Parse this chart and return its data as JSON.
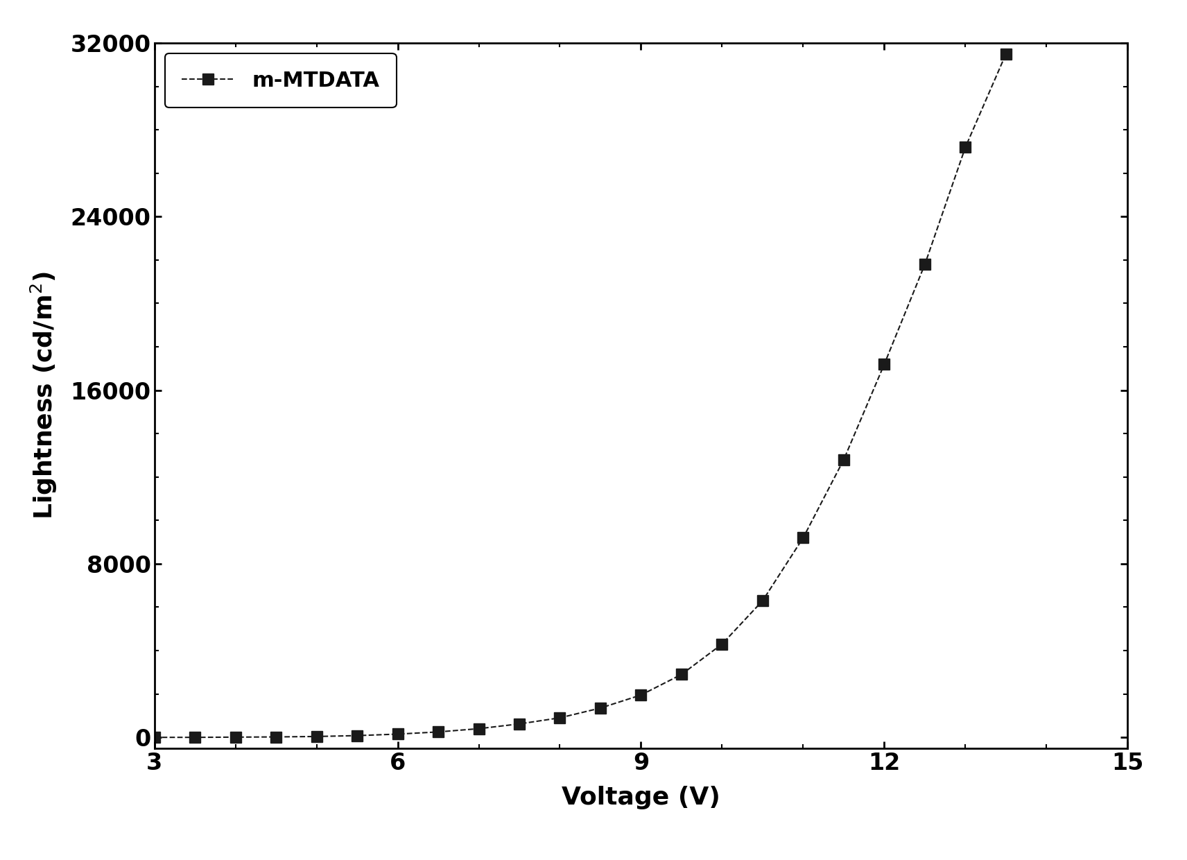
{
  "x": [
    3.0,
    3.5,
    4.0,
    4.5,
    5.0,
    5.5,
    6.0,
    6.5,
    7.0,
    7.5,
    8.0,
    8.5,
    9.0,
    9.5,
    10.0,
    10.5,
    11.0,
    11.5,
    12.0,
    12.5,
    13.0,
    13.5
  ],
  "y": [
    0,
    0,
    10,
    20,
    40,
    80,
    150,
    250,
    400,
    620,
    900,
    1350,
    1950,
    2900,
    4300,
    6300,
    9200,
    12800,
    17200,
    21800,
    27200,
    31500
  ],
  "line_color": "#1a1a1a",
  "marker_color": "#1a1a1a",
  "marker": "s",
  "marker_size": 11,
  "linewidth": 1.5,
  "linestyle": "--",
  "xlabel": "Voltage (V)",
  "ylabel": "Lightness (cd/m$^2$)",
  "xlim": [
    3,
    15
  ],
  "ylim": [
    -500,
    32000
  ],
  "xticks": [
    3,
    6,
    9,
    12,
    15
  ],
  "yticks": [
    0,
    8000,
    16000,
    24000,
    32000
  ],
  "legend_label": "m-MTDATA",
  "axis_fontsize": 26,
  "tick_fontsize": 24,
  "legend_fontsize": 22,
  "background_color": "#ffffff",
  "spine_linewidth": 2.0,
  "figure_width": 17.12,
  "figure_height": 12.4,
  "dpi": 100
}
